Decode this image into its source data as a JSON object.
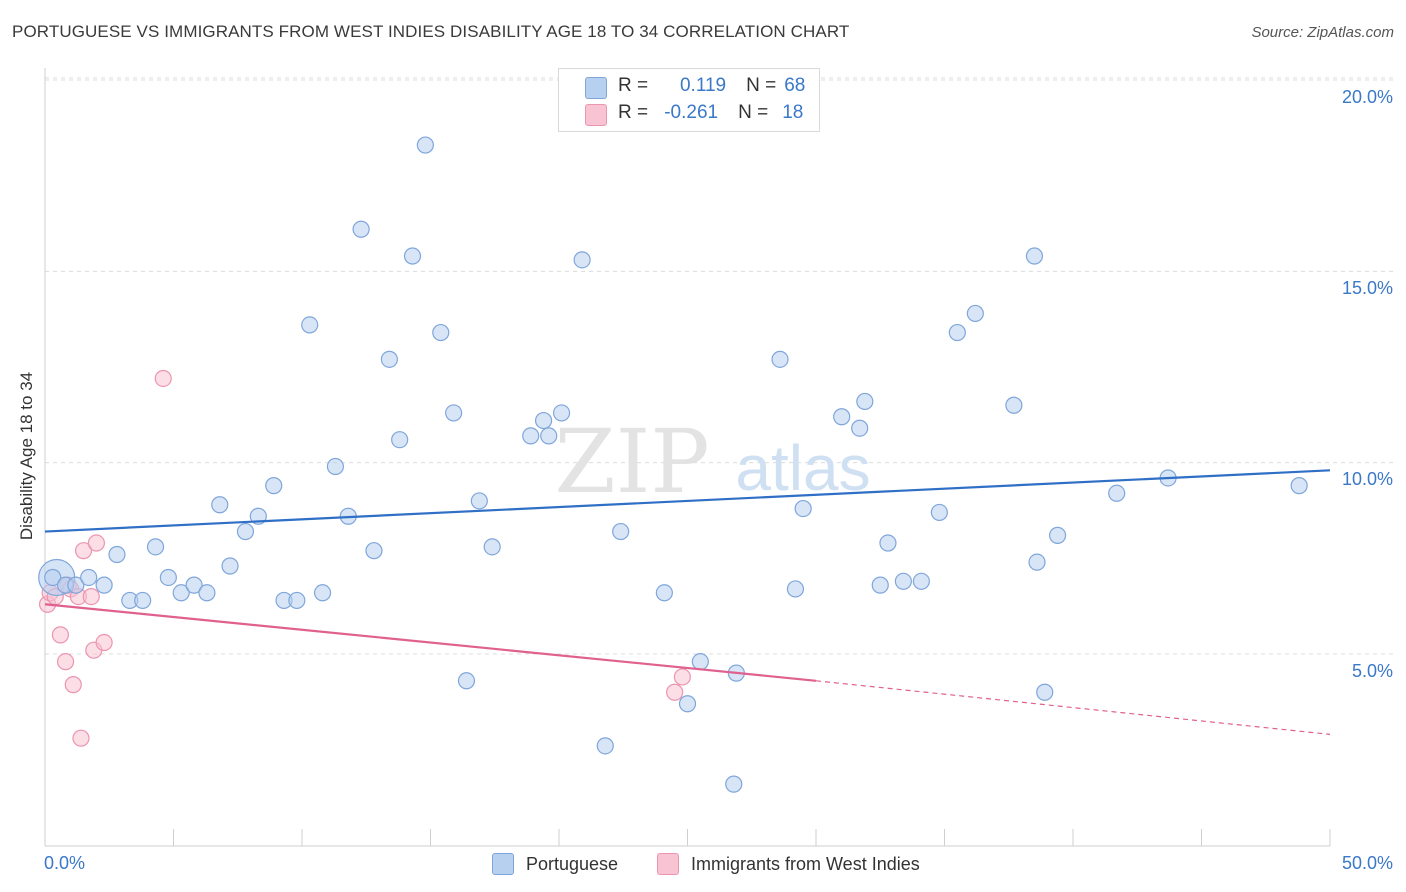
{
  "title": "PORTUGUESE VS IMMIGRANTS FROM WEST INDIES DISABILITY AGE 18 TO 34 CORRELATION CHART",
  "source": "Source: ZipAtlas.com",
  "watermark": {
    "zip": "ZIP",
    "atlas": "atlas"
  },
  "legend": {
    "r_label": "R =",
    "n_label": "N =",
    "rows": [
      {
        "r": "0.119",
        "n": "68"
      },
      {
        "r": "-0.261",
        "n": "18"
      }
    ]
  },
  "colors": {
    "blue_fill": "#b8d0f0",
    "blue_stroke": "#7fa6da",
    "blue_line": "#2f6fc6",
    "pink_fill": "#f8c3d2",
    "pink_stroke": "#ec95b0",
    "pink_line": "#e0608e",
    "value_text": "#3a78c8",
    "grid": "#dcdcdc"
  },
  "chart_data": {
    "type": "scatter",
    "title": "PORTUGUESE VS IMMIGRANTS FROM WEST INDIES DISABILITY AGE 18 TO 34 CORRELATION CHART",
    "xlabel": "",
    "ylabel": "Disability Age 18 to 34",
    "xlim": [
      0,
      50
    ],
    "ylim": [
      0,
      20.5
    ],
    "x_tick_labels": [
      "0.0%",
      "50.0%"
    ],
    "y_ticks": [
      5,
      10,
      15,
      20
    ],
    "y_tick_labels": [
      "5.0%",
      "10.0%",
      "15.0%",
      "20.0%"
    ],
    "grid": "horizontal dashed",
    "series": [
      {
        "name": "Portuguese",
        "color": "#b8d0f0",
        "R": 0.119,
        "N": 68,
        "trend": {
          "x": [
            0,
            50
          ],
          "y": [
            8.2,
            9.8
          ],
          "style": "solid"
        },
        "points": [
          [
            0.3,
            7.0
          ],
          [
            0.8,
            6.8
          ],
          [
            1.2,
            6.8
          ],
          [
            1.7,
            7.0
          ],
          [
            2.3,
            6.8
          ],
          [
            2.8,
            7.6
          ],
          [
            3.3,
            6.4
          ],
          [
            3.8,
            6.4
          ],
          [
            4.3,
            7.8
          ],
          [
            4.8,
            7.0
          ],
          [
            5.3,
            6.6
          ],
          [
            5.8,
            6.8
          ],
          [
            6.3,
            6.6
          ],
          [
            6.8,
            8.9
          ],
          [
            7.2,
            7.3
          ],
          [
            7.8,
            8.2
          ],
          [
            8.3,
            8.6
          ],
          [
            8.9,
            9.4
          ],
          [
            9.3,
            6.4
          ],
          [
            9.8,
            6.4
          ],
          [
            10.3,
            13.6
          ],
          [
            10.8,
            6.6
          ],
          [
            11.3,
            9.9
          ],
          [
            11.8,
            8.6
          ],
          [
            12.3,
            16.1
          ],
          [
            12.8,
            7.7
          ],
          [
            13.4,
            12.7
          ],
          [
            13.8,
            10.6
          ],
          [
            14.3,
            15.4
          ],
          [
            14.8,
            18.3
          ],
          [
            15.4,
            13.4
          ],
          [
            15.9,
            11.3
          ],
          [
            16.4,
            4.3
          ],
          [
            16.9,
            9.0
          ],
          [
            17.4,
            7.8
          ],
          [
            18.9,
            10.7
          ],
          [
            19.4,
            11.1
          ],
          [
            19.6,
            10.7
          ],
          [
            20.1,
            11.3
          ],
          [
            20.9,
            15.3
          ],
          [
            21.8,
            2.6
          ],
          [
            22.4,
            8.2
          ],
          [
            24.1,
            6.6
          ],
          [
            25.0,
            3.7
          ],
          [
            25.5,
            4.8
          ],
          [
            26.8,
            1.6
          ],
          [
            26.9,
            4.5
          ],
          [
            28.6,
            12.7
          ],
          [
            29.2,
            6.7
          ],
          [
            29.5,
            8.8
          ],
          [
            31.0,
            11.2
          ],
          [
            31.7,
            10.9
          ],
          [
            31.9,
            11.6
          ],
          [
            32.5,
            6.8
          ],
          [
            32.8,
            7.9
          ],
          [
            33.4,
            6.9
          ],
          [
            34.1,
            6.9
          ],
          [
            34.8,
            8.7
          ],
          [
            35.5,
            13.4
          ],
          [
            36.2,
            13.9
          ],
          [
            37.7,
            11.5
          ],
          [
            38.5,
            15.4
          ],
          [
            38.6,
            7.4
          ],
          [
            38.9,
            4.0
          ],
          [
            39.4,
            8.1
          ],
          [
            41.7,
            9.2
          ],
          [
            43.7,
            9.6
          ],
          [
            48.8,
            9.4
          ]
        ],
        "big_point": [
          0.3,
          7.0
        ]
      },
      {
        "name": "Immigrants from West Indies",
        "color": "#f8c3d2",
        "R": -0.261,
        "N": 18,
        "trend": {
          "x": [
            0,
            30
          ],
          "y": [
            6.3,
            4.3
          ],
          "style": "solid",
          "extended_to": [
            50,
            2.9
          ],
          "extended_style": "dashed"
        },
        "points": [
          [
            0.1,
            6.3
          ],
          [
            0.2,
            6.6
          ],
          [
            0.4,
            6.5
          ],
          [
            0.6,
            5.5
          ],
          [
            0.8,
            4.8
          ],
          [
            0.9,
            6.8
          ],
          [
            1.0,
            6.7
          ],
          [
            1.1,
            4.2
          ],
          [
            1.3,
            6.5
          ],
          [
            1.4,
            2.8
          ],
          [
            1.5,
            7.7
          ],
          [
            1.8,
            6.5
          ],
          [
            1.9,
            5.1
          ],
          [
            2.0,
            7.9
          ],
          [
            2.3,
            5.3
          ],
          [
            4.6,
            12.2
          ],
          [
            24.5,
            4.0
          ],
          [
            24.8,
            4.4
          ]
        ]
      }
    ]
  },
  "bottom_legend": [
    "Portuguese",
    "Immigrants from West Indies"
  ],
  "axis": {
    "x_left_label": "0.0%",
    "x_right_label": "50.0%",
    "y_labels": [
      "20.0%",
      "15.0%",
      "10.0%",
      "5.0%"
    ],
    "ylabel": "Disability Age 18 to 34"
  }
}
